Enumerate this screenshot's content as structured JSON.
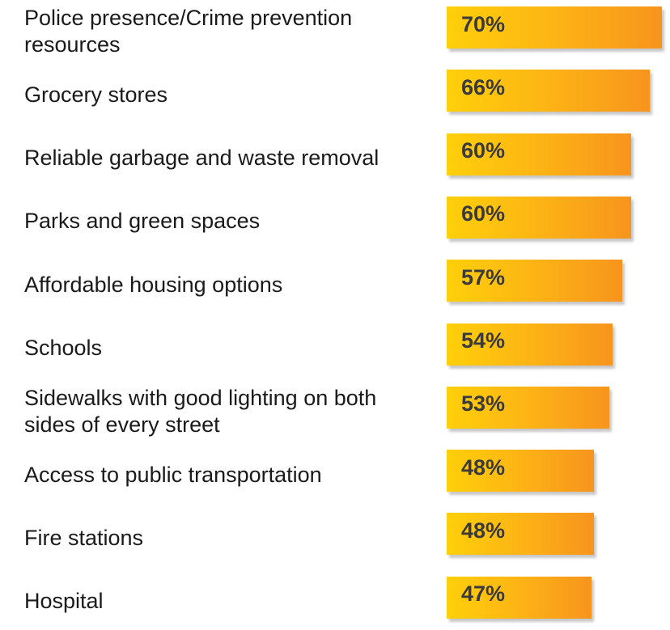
{
  "chart_data": {
    "type": "bar",
    "orientation": "horizontal",
    "categories": [
      "Police presence/Crime prevention resources",
      "Grocery stores",
      "Reliable garbage and waste removal",
      "Parks and green spaces",
      "Affordable housing options",
      "Schools",
      "Sidewalks with good lighting on both sides of every street",
      "Access to public transportation",
      "Fire stations",
      "Hospital"
    ],
    "category_labels": [
      "Police presence/Crime prevention\nresources",
      "Grocery stores",
      "Reliable garbage and waste removal",
      "Parks and green spaces",
      "Affordable housing options",
      "Schools",
      "Sidewalks with good lighting on both\nsides of every street",
      "Access to public transportation",
      "Fire stations",
      "Hospital"
    ],
    "values": [
      70,
      66,
      60,
      60,
      57,
      54,
      53,
      48,
      48,
      47
    ],
    "data_labels": [
      "70%",
      "66%",
      "60%",
      "60%",
      "57%",
      "54%",
      "53%",
      "48%",
      "48%",
      "47%"
    ],
    "unit": "%",
    "title": "",
    "xlabel": "",
    "ylabel": "",
    "grid": false,
    "legend": false,
    "bar_colors": [
      "#ffcf0a",
      "#f7941d"
    ]
  }
}
